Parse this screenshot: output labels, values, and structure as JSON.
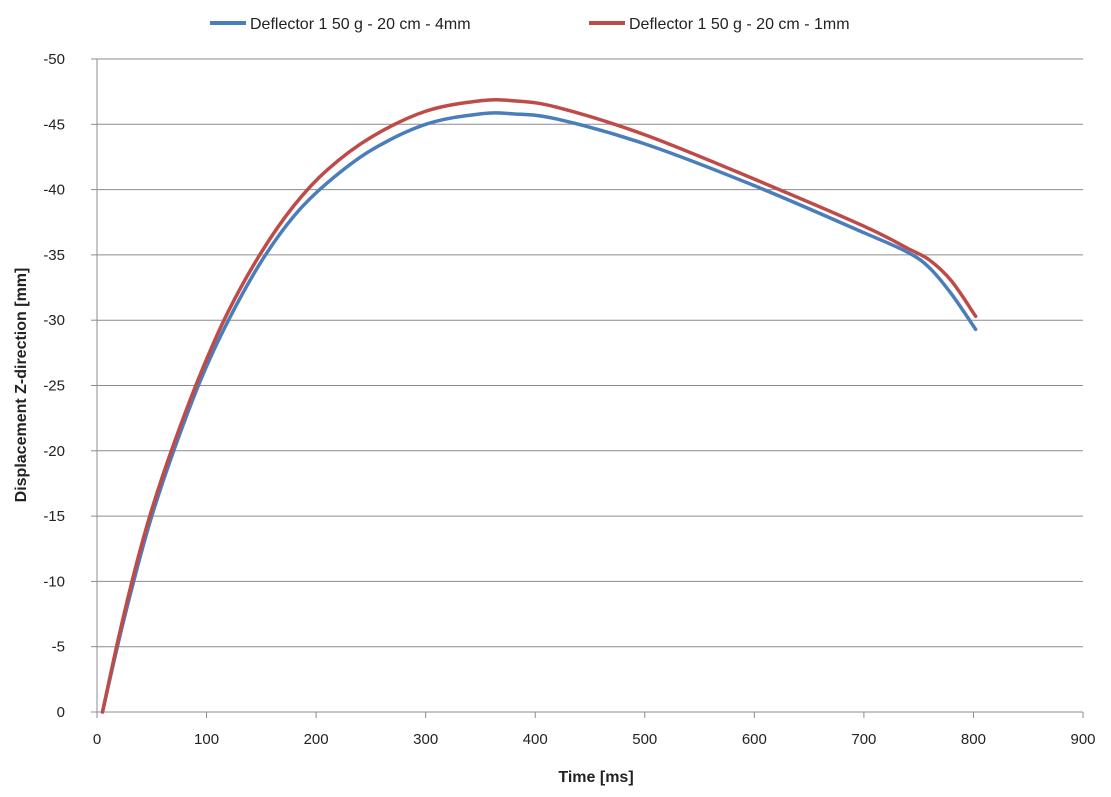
{
  "chart_data": {
    "type": "line",
    "title": "",
    "xlabel": "Time [ms]",
    "ylabel": "Displacement Z-direction [mm]",
    "xlim": [
      0,
      900
    ],
    "ylim": [
      0,
      -50
    ],
    "y_axis_reversed": true,
    "x_ticks": [
      0,
      100,
      200,
      300,
      400,
      500,
      600,
      700,
      800,
      900
    ],
    "y_ticks": [
      0,
      -5,
      -10,
      -15,
      -20,
      -25,
      -30,
      -35,
      -40,
      -45,
      -50
    ],
    "grid": "horizontal",
    "legend_position": "top",
    "series": [
      {
        "name": "Deflector 1 50 g - 20 cm - 4mm",
        "color": "#4a7ebb",
        "points": [
          [
            5,
            0
          ],
          [
            20,
            -5.5
          ],
          [
            35,
            -10.5
          ],
          [
            50,
            -15
          ],
          [
            70,
            -20
          ],
          [
            95,
            -25.5
          ],
          [
            120,
            -30
          ],
          [
            150,
            -34.5
          ],
          [
            180,
            -38
          ],
          [
            210,
            -40.5
          ],
          [
            250,
            -43
          ],
          [
            300,
            -45
          ],
          [
            350,
            -45.8
          ],
          [
            380,
            -45.8
          ],
          [
            420,
            -45.4
          ],
          [
            500,
            -43.5
          ],
          [
            600,
            -40.3
          ],
          [
            700,
            -36.7
          ],
          [
            740,
            -35.2
          ],
          [
            760,
            -34
          ],
          [
            780,
            -32
          ],
          [
            802,
            -29.3
          ]
        ]
      },
      {
        "name": "Deflector 1 50 g - 20 cm - 1mm",
        "color": "#be4b48",
        "points": [
          [
            5,
            0
          ],
          [
            20,
            -5.8
          ],
          [
            35,
            -11
          ],
          [
            50,
            -15.5
          ],
          [
            70,
            -20.5
          ],
          [
            95,
            -26
          ],
          [
            120,
            -30.7
          ],
          [
            150,
            -35.2
          ],
          [
            180,
            -38.8
          ],
          [
            210,
            -41.5
          ],
          [
            250,
            -44
          ],
          [
            300,
            -46
          ],
          [
            350,
            -46.8
          ],
          [
            380,
            -46.8
          ],
          [
            420,
            -46.3
          ],
          [
            500,
            -44.2
          ],
          [
            600,
            -40.8
          ],
          [
            700,
            -37.2
          ],
          [
            740,
            -35.5
          ],
          [
            760,
            -34.6
          ],
          [
            780,
            -33
          ],
          [
            802,
            -30.3
          ]
        ]
      }
    ]
  }
}
